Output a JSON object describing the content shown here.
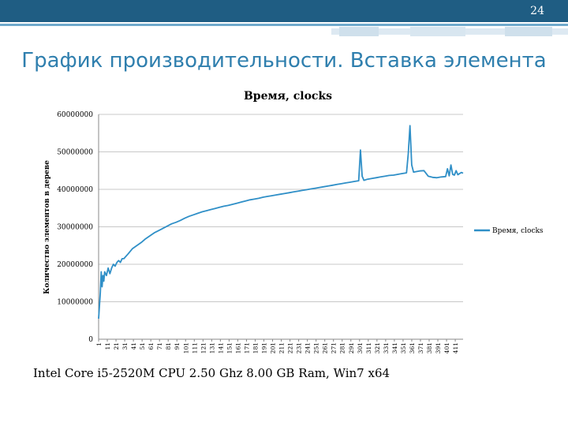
{
  "slide": {
    "number": "24",
    "title": "График производительности. Вставка элемента",
    "caption": "Intel Core i5-2520M CPU 2.50 Ghz  8.00 GB Ram, Win7 x64"
  },
  "colors": {
    "accent": "#2f7fae",
    "header_dark": "#1f5d83",
    "series": "#2f8fc7",
    "grid": "#c8c8c8"
  },
  "chart_data": {
    "type": "line",
    "title": "Время, clocks",
    "xlabel": "",
    "ylabel": "Количество элементов в дереве",
    "ylim": [
      0,
      60000000
    ],
    "y_ticks": [
      0,
      10000000,
      20000000,
      30000000,
      40000000,
      50000000,
      60000000
    ],
    "y_tick_labels": [
      "0",
      "10000000",
      "20000000",
      "30000000",
      "40000000",
      "50000000",
      "60000000"
    ],
    "x_range": [
      1,
      420
    ],
    "x_tick_labels": [
      "1",
      "11",
      "21",
      "31",
      "41",
      "51",
      "61",
      "71",
      "81",
      "91",
      "101",
      "111",
      "121",
      "131",
      "141",
      "151",
      "161",
      "171",
      "181",
      "191",
      "201",
      "211",
      "221",
      "231",
      "241",
      "251",
      "261",
      "271",
      "281",
      "291",
      "301",
      "311",
      "321",
      "331",
      "341",
      "351",
      "361",
      "371",
      "381",
      "391",
      "401",
      "411"
    ],
    "grid": true,
    "legend_position": "right",
    "series": [
      {
        "name": "Время, clocks",
        "x": [
          1,
          2,
          3,
          4,
          5,
          6,
          7,
          8,
          10,
          12,
          14,
          16,
          18,
          20,
          22,
          24,
          26,
          28,
          30,
          35,
          40,
          45,
          50,
          55,
          60,
          65,
          70,
          75,
          80,
          85,
          90,
          95,
          100,
          105,
          110,
          115,
          120,
          125,
          130,
          135,
          140,
          145,
          150,
          155,
          160,
          165,
          170,
          175,
          180,
          185,
          190,
          195,
          200,
          205,
          210,
          215,
          220,
          225,
          230,
          235,
          240,
          245,
          250,
          255,
          260,
          265,
          270,
          275,
          280,
          285,
          290,
          295,
          300,
          302,
          304,
          306,
          310,
          315,
          320,
          325,
          330,
          335,
          340,
          345,
          350,
          355,
          357,
          359,
          361,
          363,
          365,
          370,
          375,
          380,
          385,
          390,
          395,
          400,
          402,
          404,
          406,
          408,
          410,
          412,
          414,
          416,
          418,
          420
        ],
        "y": [
          5500000,
          9000000,
          12500000,
          18000000,
          14000000,
          17000000,
          15500000,
          18000000,
          17000000,
          19000000,
          17500000,
          19000000,
          20000000,
          19500000,
          20500000,
          21000000,
          20500000,
          21500000,
          21500000,
          22800000,
          24200000,
          25000000,
          25800000,
          26800000,
          27600000,
          28400000,
          29000000,
          29600000,
          30200000,
          30800000,
          31200000,
          31700000,
          32300000,
          32800000,
          33200000,
          33600000,
          34000000,
          34300000,
          34600000,
          34900000,
          35200000,
          35500000,
          35700000,
          36000000,
          36300000,
          36600000,
          36900000,
          37200000,
          37400000,
          37600000,
          37900000,
          38100000,
          38300000,
          38500000,
          38700000,
          38900000,
          39100000,
          39300000,
          39500000,
          39700000,
          39900000,
          40100000,
          40300000,
          40500000,
          40700000,
          40900000,
          41100000,
          41300000,
          41500000,
          41700000,
          41900000,
          42100000,
          42300000,
          50500000,
          43500000,
          42400000,
          42700000,
          42900000,
          43100000,
          43300000,
          43500000,
          43700000,
          43800000,
          44000000,
          44200000,
          44400000,
          49500000,
          57000000,
          46500000,
          44600000,
          44700000,
          44900000,
          45000000,
          43500000,
          43200000,
          43100000,
          43300000,
          43400000,
          45500000,
          43600000,
          46500000,
          44000000,
          43800000,
          45000000,
          43900000,
          44200000,
          44500000,
          44300000
        ]
      }
    ]
  }
}
